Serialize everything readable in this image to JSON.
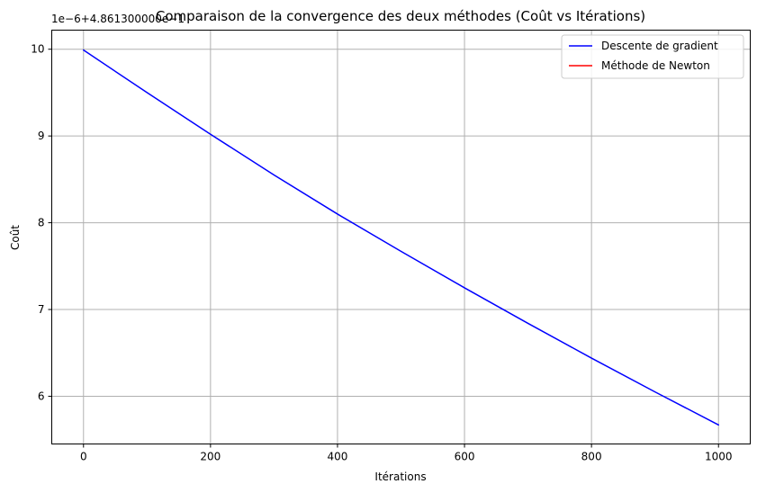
{
  "chart_data": {
    "type": "line",
    "title": "Comparaison de la convergence des deux méthodes (Coût vs Itérations)",
    "xlabel": "Itérations",
    "ylabel": "Coût",
    "y_offset_text": "1e−6+4.861300000e−1",
    "xlim": [
      -50,
      1050
    ],
    "ylim": [
      5.45,
      10.22
    ],
    "x_ticks": [
      0,
      200,
      400,
      600,
      800,
      1000
    ],
    "y_ticks": [
      6,
      7,
      8,
      9,
      10
    ],
    "grid": true,
    "legend_position": "top-right",
    "series": [
      {
        "name": "Descente de gradient",
        "color": "#0000ff",
        "x": [
          0,
          100,
          200,
          300,
          400,
          500,
          600,
          700,
          800,
          900,
          1000
        ],
        "values": [
          9.99,
          9.5,
          9.02,
          8.55,
          8.1,
          7.67,
          7.25,
          6.84,
          6.44,
          6.05,
          5.67
        ]
      },
      {
        "name": "Méthode de Newton",
        "color": "#ff0000",
        "x": [],
        "values": []
      }
    ]
  }
}
